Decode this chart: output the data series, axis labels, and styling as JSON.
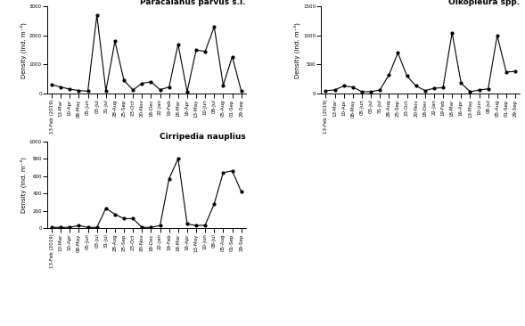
{
  "labels": [
    "13-Feb (2019)",
    "13-Mar",
    "10-Apr",
    "08-May",
    "05-Jun",
    "03-Jul",
    "31-Jul",
    "28-Aug",
    "25-Sep",
    "23-Oct",
    "20-Nov",
    "18-Dec",
    "22-Jan",
    "19-Feb",
    "18-Mar",
    "16-Apr",
    "13-May",
    "10-Jun",
    "08-Jul",
    "05-Aug",
    "01-Sep",
    "29-Sep"
  ],
  "paracalanus": [
    300,
    220,
    150,
    100,
    80,
    2700,
    90,
    1800,
    450,
    120,
    350,
    400,
    130,
    220,
    1700,
    60,
    1500,
    1450,
    2300,
    280,
    1270,
    80
  ],
  "oikopleura": [
    50,
    60,
    130,
    110,
    30,
    30,
    60,
    320,
    700,
    300,
    130,
    50,
    90,
    100,
    1050,
    180,
    30,
    60,
    80,
    1000,
    370,
    380
  ],
  "cirripedia": [
    10,
    10,
    10,
    30,
    10,
    10,
    230,
    160,
    110,
    110,
    10,
    10,
    30,
    570,
    800,
    50,
    30,
    35,
    280,
    640,
    660,
    420
  ],
  "paracalanus_ylim": [
    0,
    3000
  ],
  "oikopleura_ylim": [
    0,
    1500
  ],
  "cirripedia_ylim": [
    0,
    1000
  ],
  "paracalanus_yticks": [
    0,
    1000,
    2000,
    3000
  ],
  "oikopleura_yticks": [
    0,
    500,
    1000,
    1500
  ],
  "cirripedia_yticks": [
    0,
    200,
    400,
    600,
    800,
    1000
  ],
  "title1": "Paracalanus parvus s.l.",
  "title2": "Oikopleura spp.",
  "title3": "Cirripedia nauplius",
  "ylabel": "Density (Ind. m⁻³)",
  "line_color": "#000000",
  "marker": "o",
  "markersize": 2,
  "linewidth": 0.8,
  "tick_fontsize": 4.0,
  "ylabel_fontsize": 5.0,
  "title_fontsize": 6.5
}
